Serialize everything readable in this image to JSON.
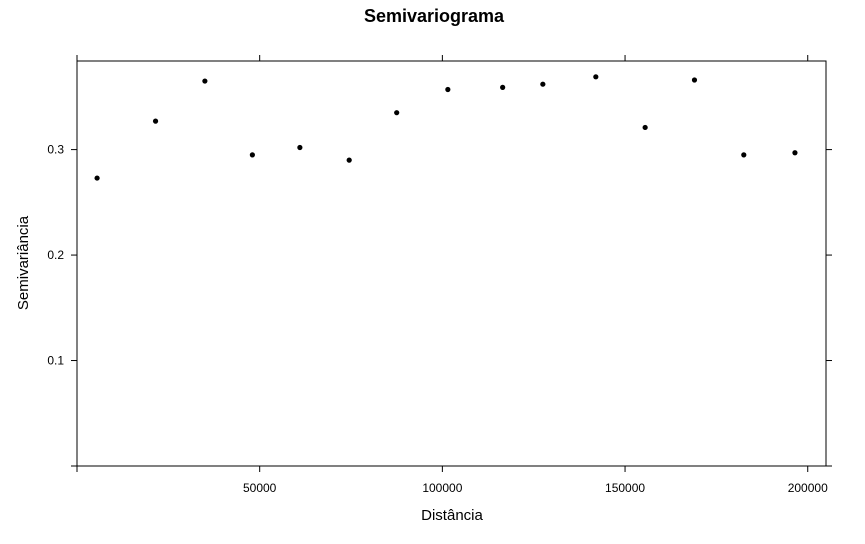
{
  "chart_data": {
    "type": "scatter",
    "title": "Semivariograma",
    "xlabel": "Distância",
    "ylabel": "Semivariância",
    "xlim": [
      0,
      205000
    ],
    "ylim": [
      0.0,
      0.384
    ],
    "xticks": [
      50000,
      100000,
      150000,
      200000
    ],
    "xtick_labels": [
      "50000",
      "100000",
      "150000",
      "200000"
    ],
    "yticks": [
      0.1,
      0.2,
      0.3
    ],
    "ytick_labels": [
      "0.1",
      "0.2",
      "0.3"
    ],
    "grid": false,
    "legend": "none",
    "marker_color": "#000000",
    "points": [
      {
        "x": 5500,
        "y": 0.273
      },
      {
        "x": 21500,
        "y": 0.327
      },
      {
        "x": 35000,
        "y": 0.365
      },
      {
        "x": 48000,
        "y": 0.295
      },
      {
        "x": 61000,
        "y": 0.302
      },
      {
        "x": 74500,
        "y": 0.29
      },
      {
        "x": 87500,
        "y": 0.335
      },
      {
        "x": 101500,
        "y": 0.357
      },
      {
        "x": 116500,
        "y": 0.359
      },
      {
        "x": 127500,
        "y": 0.362
      },
      {
        "x": 142000,
        "y": 0.369
      },
      {
        "x": 155500,
        "y": 0.321
      },
      {
        "x": 169000,
        "y": 0.366
      },
      {
        "x": 182500,
        "y": 0.295
      },
      {
        "x": 196500,
        "y": 0.297
      }
    ]
  }
}
